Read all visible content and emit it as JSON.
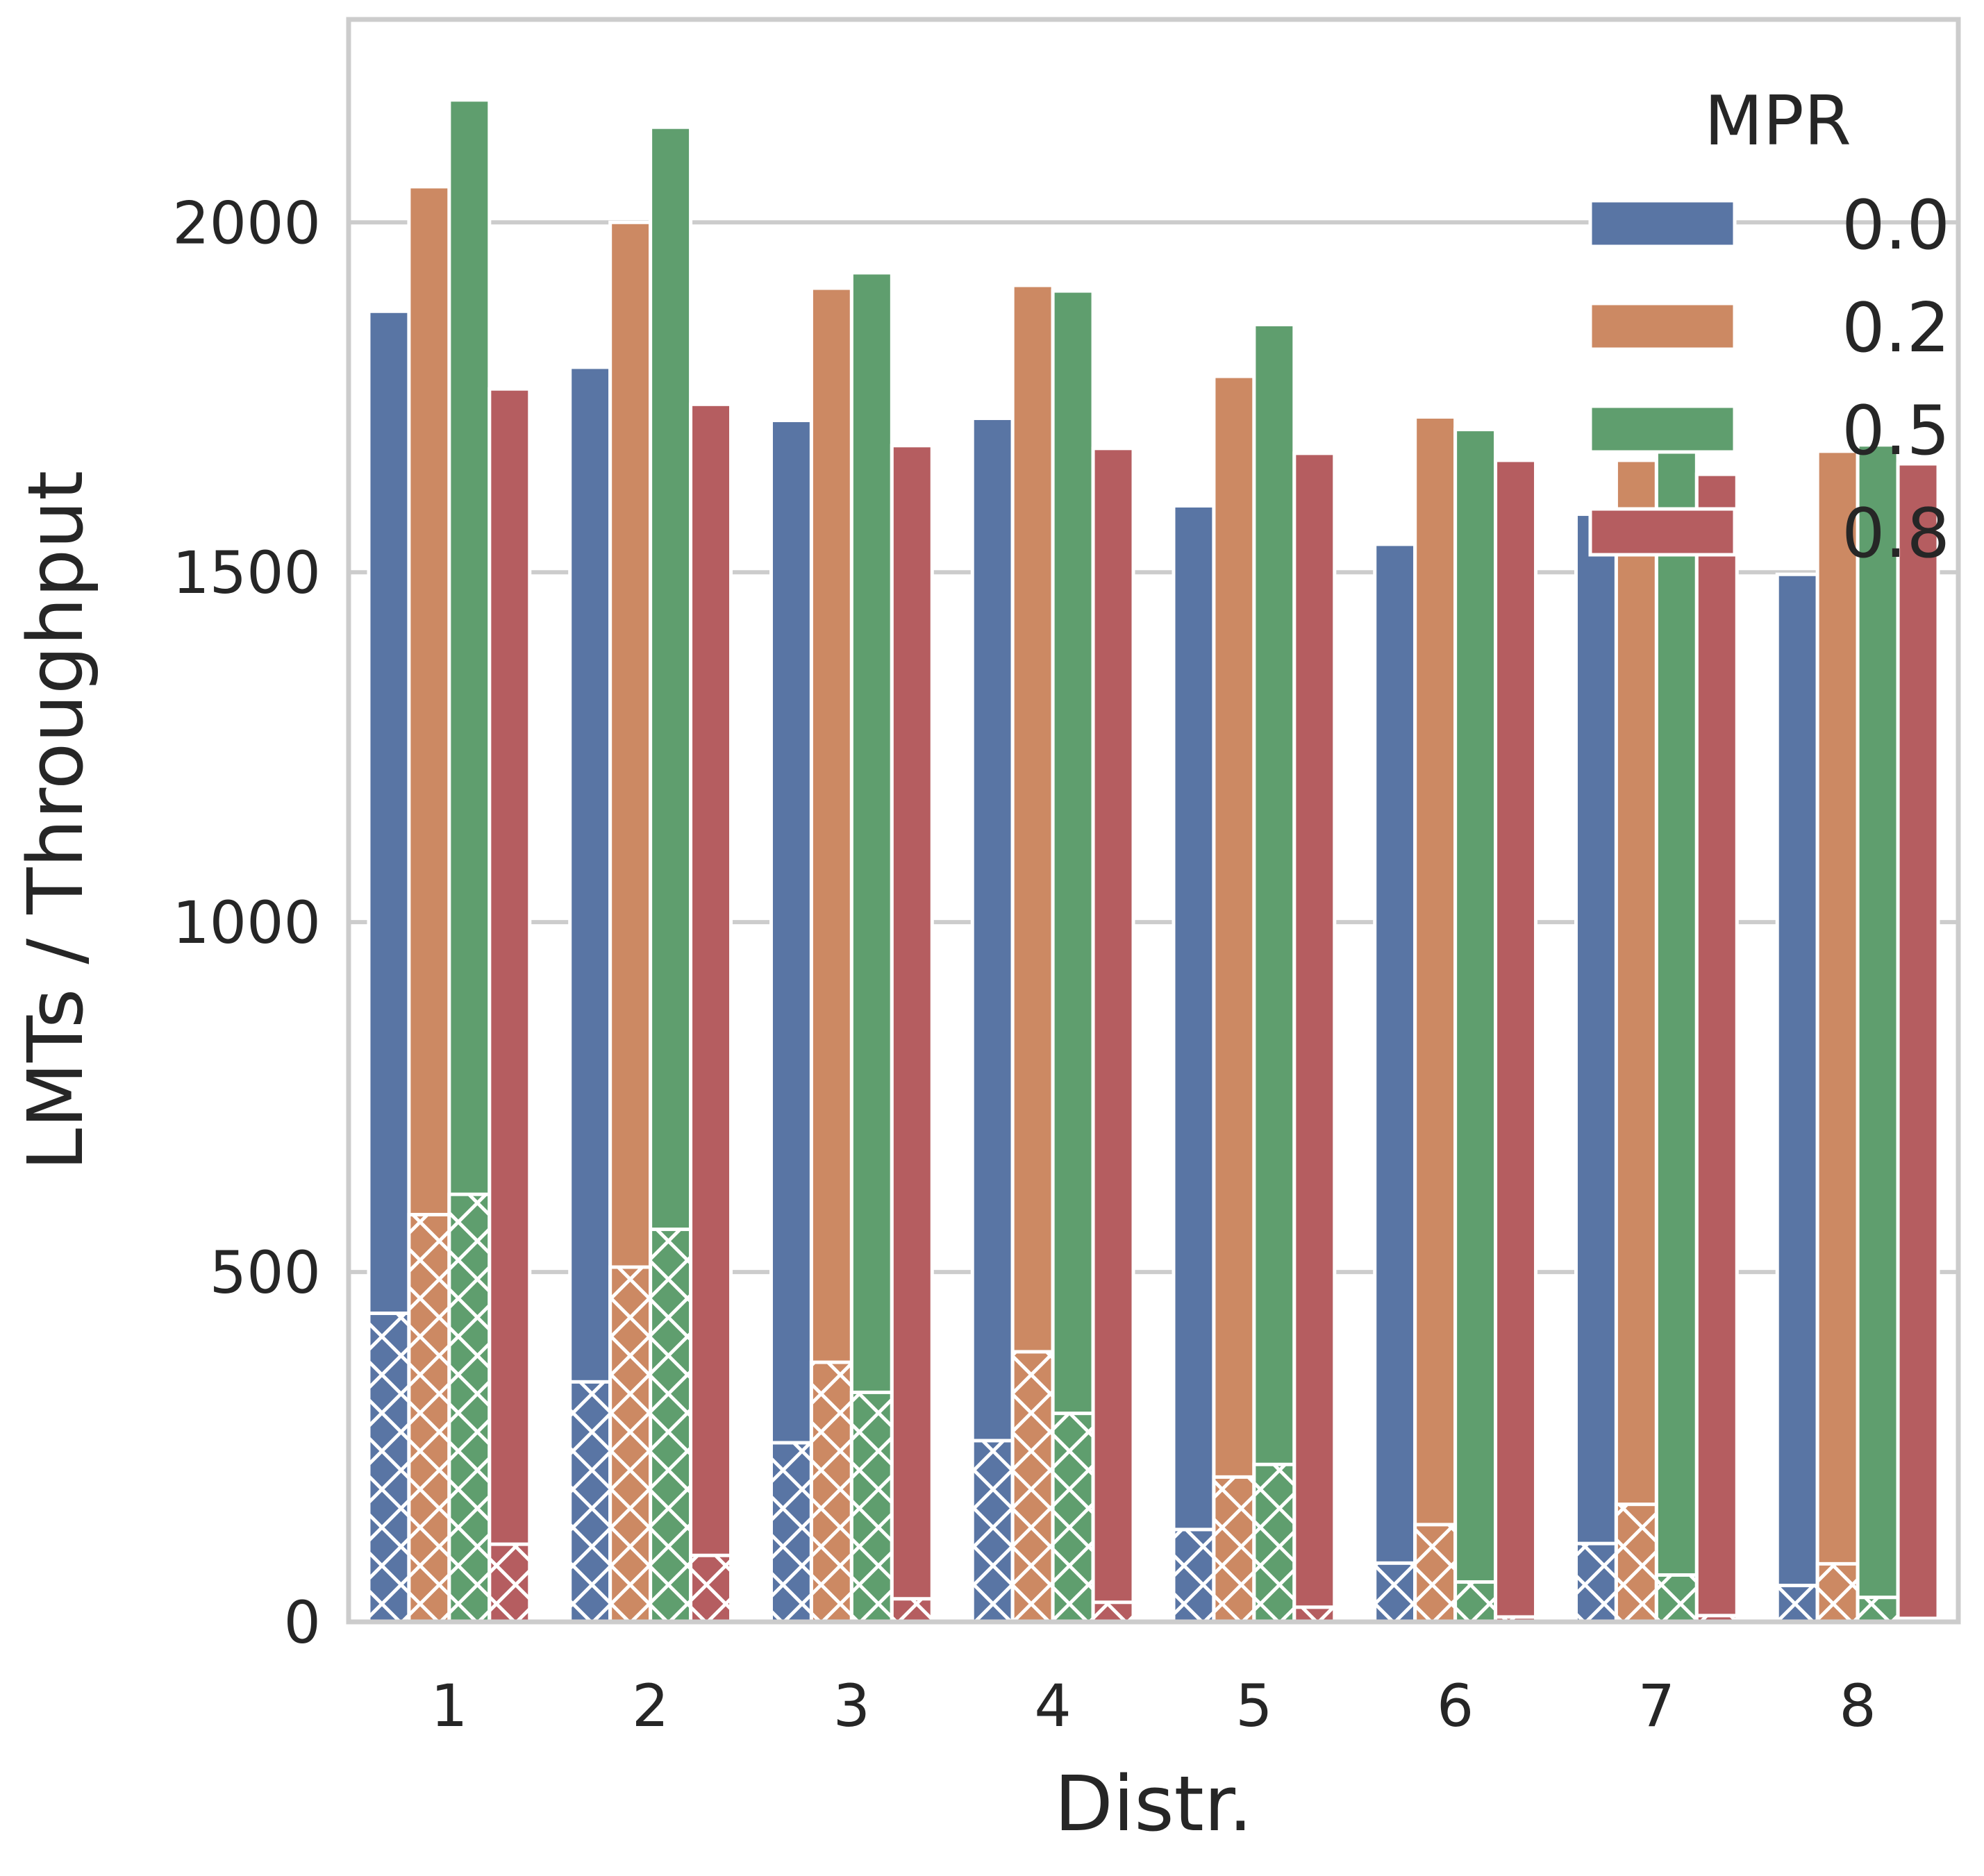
{
  "chart_data": {
    "type": "bar",
    "title": "",
    "xlabel": "Distr.",
    "ylabel": "LMTs / Throughput",
    "categories": [
      "1",
      "2",
      "3",
      "4",
      "5",
      "6",
      "7",
      "8"
    ],
    "ylim": [
      0,
      2290
    ],
    "yticks": [
      0,
      500,
      1000,
      1500,
      2000
    ],
    "grid": "horizontal",
    "legend": {
      "title": "MPR",
      "placement": "top-right"
    },
    "series": [
      {
        "name": "0.0",
        "color": "#5975a4",
        "lmts": [
          1873,
          1793,
          1717,
          1720,
          1595,
          1540,
          1583,
          1497
        ],
        "throughput": [
          441,
          343,
          256,
          259,
          132,
          84,
          112,
          52
        ]
      },
      {
        "name": "0.2",
        "color": "#cc8963",
        "lmts": [
          2051,
          2000,
          1906,
          1910,
          1780,
          1722,
          1660,
          1673
        ],
        "throughput": [
          582,
          507,
          371,
          386,
          207,
          139,
          168,
          83
        ]
      },
      {
        "name": "0.5",
        "color": "#5f9e6e",
        "lmts": [
          2175,
          2136,
          1928,
          1902,
          1854,
          1704,
          1688,
          1682
        ],
        "throughput": [
          611,
          561,
          328,
          298,
          225,
          57,
          67,
          35
        ]
      },
      {
        "name": "0.8",
        "color": "#b55d60",
        "lmts": [
          1762,
          1740,
          1681,
          1677,
          1670,
          1660,
          1640,
          1655
        ],
        "throughput": [
          111,
          95,
          33,
          28,
          21,
          7,
          9,
          5
        ]
      }
    ]
  }
}
